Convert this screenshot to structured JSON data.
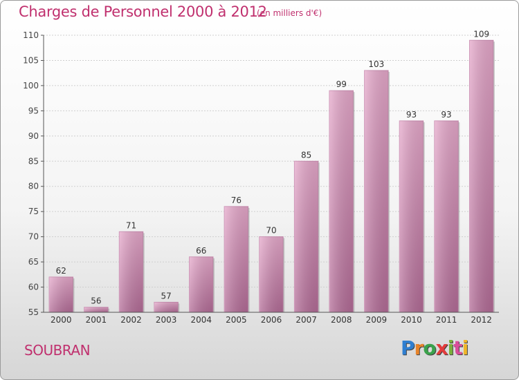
{
  "header": {
    "title": "Charges de Personnel 2000 à 2012",
    "subtitle": "(en milliers d'€)"
  },
  "footer": {
    "place": "SOUBRAN",
    "logo_letters": [
      "P",
      "r",
      "o",
      "x",
      "i",
      "t",
      "i"
    ],
    "logo_colors": [
      "#2f7fd1",
      "#e8842a",
      "#3aa24b",
      "#e33b3b",
      "#7ab03a",
      "#d94d9a",
      "#f0b52a"
    ]
  },
  "chart_data": {
    "type": "bar",
    "title": "Charges de Personnel 2000 à 2012",
    "categories": [
      "2000",
      "2001",
      "2002",
      "2003",
      "2004",
      "2005",
      "2006",
      "2007",
      "2008",
      "2009",
      "2010",
      "2011",
      "2012"
    ],
    "values": [
      62,
      56,
      71,
      57,
      66,
      76,
      70,
      85,
      99,
      103,
      93,
      93,
      109
    ],
    "ylim": [
      55,
      110
    ],
    "yticks": [
      55,
      60,
      65,
      70,
      75,
      80,
      85,
      90,
      95,
      100,
      105,
      110
    ],
    "grid": true,
    "bar_color": "#d988b6"
  }
}
